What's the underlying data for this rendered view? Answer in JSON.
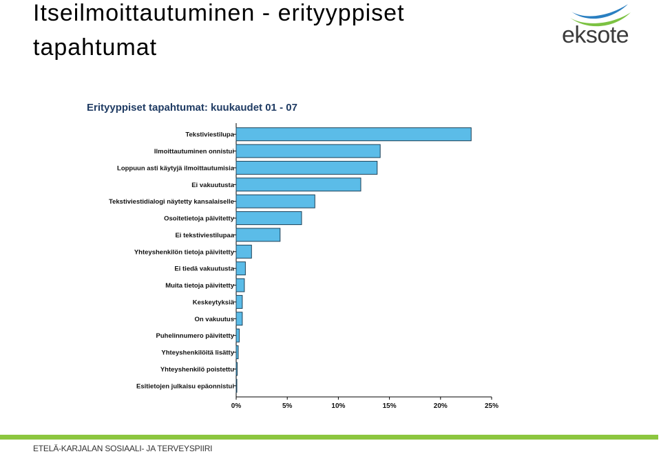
{
  "slide": {
    "title_line1": "Itseilmoittautuminen - erityyppiset",
    "title_line2": "tapahtumat",
    "logo_text": "eksote",
    "footer": "ETELÄ-KARJALAN SOSIAALI- JA TERVEYSPIIRI"
  },
  "colors": {
    "bar": "#5bbce8",
    "bar_stroke": "#1c3f55",
    "footer_bar": "#8cc63f",
    "logo_blue": "#2a7fc1",
    "logo_green": "#7cc242"
  },
  "chart_data": {
    "type": "bar",
    "orientation": "horizontal",
    "title": "Erityyppiset tapahtumat: kuukaudet 01 - 07",
    "categories": [
      "Tekstiviestilupa",
      "Ilmoittautuminen onnistui",
      "Loppuun asti käytyjä ilmoittautumisia",
      "Ei vakuutusta",
      "Tekstiviestidialogi näytetty kansalaiselle",
      "Osoitetietoja päivitetty",
      "Ei tekstiviestilupaa",
      "Yhteyshenkilön tietoja päivitetty",
      "Ei tiedä vakuutusta",
      "Muita tietoja päivitetty",
      "Keskeytyksiä",
      "On vakuutus",
      "Puhelinnumero päivitetty",
      "Yhteyshenkilöitä lisätty",
      "Yhteyshenkilö poistettu",
      "Esitietojen julkaisu epäonnistui"
    ],
    "values": [
      23.0,
      14.1,
      13.8,
      12.2,
      7.7,
      6.4,
      4.3,
      1.5,
      0.9,
      0.8,
      0.6,
      0.6,
      0.3,
      0.2,
      0.1,
      0.05
    ],
    "xticks": [
      "0%",
      "5%",
      "10%",
      "15%",
      "20%",
      "25%"
    ],
    "xlim": [
      0,
      25
    ],
    "xlabel": "",
    "ylabel": "",
    "grid": false,
    "legend": "none"
  }
}
